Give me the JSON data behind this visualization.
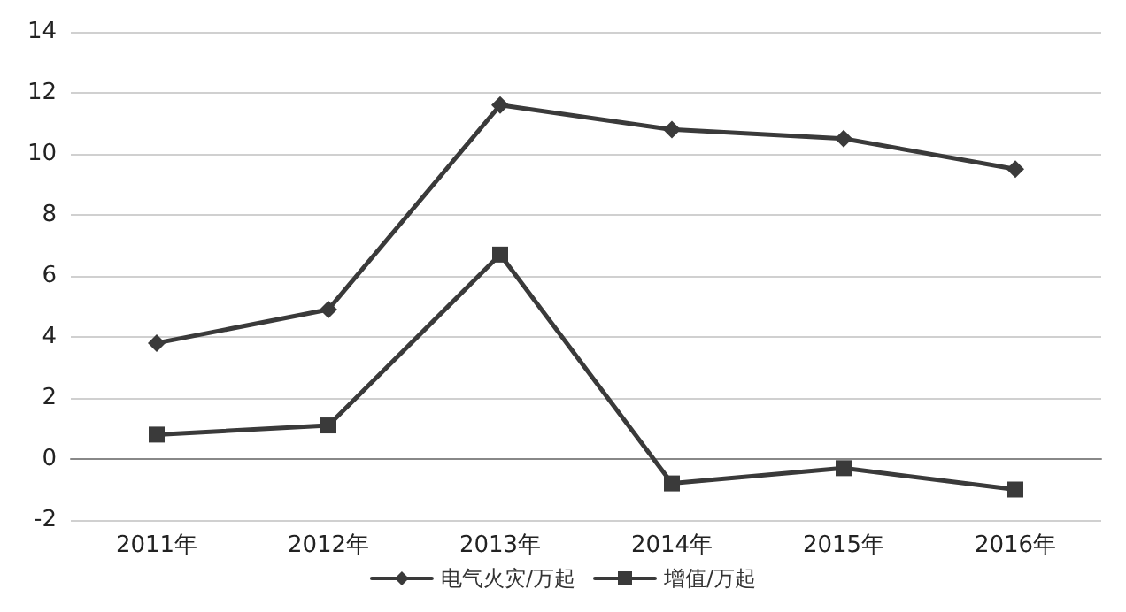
{
  "chart_data": {
    "type": "line",
    "categories": [
      "2011年",
      "2012年",
      "2013年",
      "2014年",
      "2015年",
      "2016年"
    ],
    "series": [
      {
        "name": "电气火灾/万起",
        "color": "#3a3a3a",
        "marker": "diamond",
        "values": [
          3.8,
          4.9,
          11.6,
          10.8,
          10.5,
          9.5
        ]
      },
      {
        "name": "增值/万起",
        "color": "#3a3a3a",
        "marker": "square",
        "values": [
          0.8,
          1.1,
          6.7,
          -0.8,
          -0.3,
          -1.0
        ]
      }
    ],
    "ylim": [
      -2,
      14
    ],
    "yticks": [
      -2,
      0,
      2,
      4,
      6,
      8,
      10,
      12,
      14
    ],
    "grid": "y",
    "legend": "bottom",
    "line_style": "solid"
  }
}
